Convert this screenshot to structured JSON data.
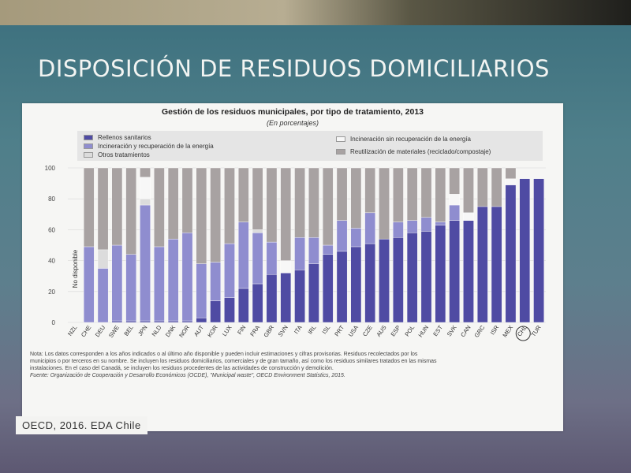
{
  "slide": {
    "title": "DISPOSICIÓN DE RESIDUOS DOMICILIARIOS",
    "source": "OECD, 2016. EDA Chile"
  },
  "chart_data": {
    "type": "bar",
    "stacked": true,
    "title": "Gestión de los residuos municipales, por tipo de tratamiento, 2013",
    "subtitle": "(En porcentajes)",
    "ylim": [
      0,
      100
    ],
    "yticks": [
      0,
      20,
      40,
      60,
      80,
      100
    ],
    "not_available_label": "No disponible",
    "categories": [
      "NZL",
      "CHE",
      "DEU",
      "SWE",
      "BEL",
      "JPN",
      "NLD",
      "DNK",
      "NOR",
      "AUT",
      "KOR",
      "LUX",
      "FIN",
      "FRA",
      "GBR",
      "SVN",
      "ITA",
      "IRL",
      "ISL",
      "PRT",
      "USA",
      "CZE",
      "AUS",
      "ESP",
      "POL",
      "HUN",
      "EST",
      "SVK",
      "CAN",
      "GRC",
      "ISR",
      "MEX",
      "CHL",
      "TUR"
    ],
    "series": [
      {
        "name": "Rellenos sanitarios",
        "color": "#4f4ba3",
        "values": [
          null,
          0,
          0,
          1,
          1,
          1,
          1,
          1,
          1,
          3,
          14,
          16,
          22,
          25,
          31,
          32,
          34,
          38,
          44,
          46,
          49,
          51,
          54,
          55,
          58,
          59,
          63,
          66,
          66,
          75,
          75,
          89,
          93,
          93
        ]
      },
      {
        "name": "Incineración y recuperación de la energía",
        "color": "#8f8dcf",
        "values": [
          null,
          49,
          35,
          49,
          43,
          75,
          48,
          53,
          57,
          35,
          25,
          35,
          43,
          33,
          21,
          0,
          21,
          17,
          6,
          20,
          12,
          20,
          0,
          10,
          8,
          9,
          2,
          10,
          0,
          0,
          0,
          0,
          0,
          0
        ]
      },
      {
        "name": "Otros tratamientos",
        "color": "#dcdcdc",
        "values": [
          null,
          0,
          12,
          0,
          0,
          4,
          0,
          0,
          0,
          0,
          0,
          0,
          0,
          2,
          0,
          0,
          0,
          0,
          0,
          0,
          0,
          0,
          0,
          0,
          0,
          0,
          0,
          0,
          0,
          0,
          0,
          0,
          0,
          0
        ]
      },
      {
        "name": "Incineración sin recuperación de la energía",
        "color": "#f7f7f7",
        "values": [
          null,
          0,
          0,
          0,
          0,
          14,
          0,
          0,
          0,
          0,
          0,
          0,
          0,
          0,
          0,
          8,
          0,
          0,
          0,
          0,
          0,
          0,
          0,
          0,
          0,
          0,
          0,
          7,
          5,
          0,
          0,
          4,
          0,
          0
        ]
      },
      {
        "name": "Reutilización de materiales (reciclado/compostaje)",
        "color": "#a8a2a2",
        "values": [
          null,
          51,
          53,
          50,
          56,
          6,
          51,
          46,
          42,
          62,
          61,
          49,
          35,
          40,
          48,
          60,
          45,
          45,
          50,
          34,
          39,
          29,
          46,
          35,
          34,
          32,
          35,
          17,
          29,
          25,
          25,
          7,
          0,
          0
        ]
      }
    ]
  },
  "note": {
    "lines": [
      "Nota: Los datos corresponden a los años indicados o al último año disponible y pueden incluir estimaciones y cifras provisorias. Residuos recolectados por los",
      "municipios o por terceros en su nombre. Se incluyen los residuos domiciliarios, comerciales y de gran tamaño, así como los residuos similares tratados en las mismas",
      "instalaciones. En el caso del Canadá, se incluyen los residuos procedentes de las actividades de construcción y demolición.",
      "Fuente: Organización de Cooperación y Desarrollo Económicos (OCDE), \"Municipal waste\", OECD Environment Statistics, 2015."
    ]
  }
}
